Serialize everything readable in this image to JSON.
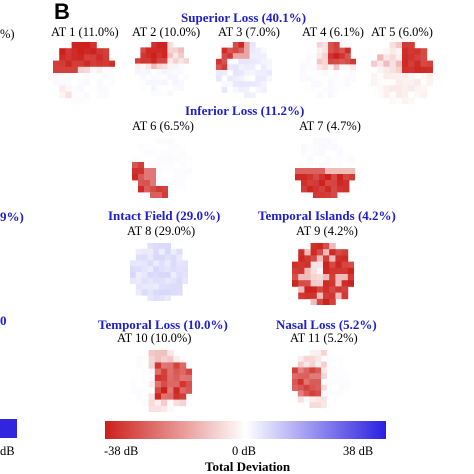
{
  "panel": {
    "letter": "B"
  },
  "groups": [
    {
      "title": "Superior Loss (40.1%)"
    },
    {
      "title": "Inferior Loss (11.2%)"
    },
    {
      "title": "Intact Field (29.0%)"
    },
    {
      "title": "Temporal Islands (4.2%)"
    },
    {
      "title": "Temporal Loss (10.0%)"
    },
    {
      "title": "Nasal Loss (5.2%)"
    }
  ],
  "archetypes": [
    {
      "label": "AT 1 (11.0%)",
      "pattern": "superior-loss"
    },
    {
      "label": "AT 2 (10.0%)",
      "pattern": "superior-temporal-quadrant"
    },
    {
      "label": "AT 3 (7.0%)",
      "pattern": "superior-temporal-arc"
    },
    {
      "label": "AT 4 (6.1%)",
      "pattern": "superior-nasal-partial"
    },
    {
      "label": "AT 5 (6.0%)",
      "pattern": "superior-nasal-band"
    },
    {
      "label": "AT 6 (6.5%)",
      "pattern": "inferior-temporal-arc"
    },
    {
      "label": "AT 7 (4.7%)",
      "pattern": "inferior-loss"
    },
    {
      "label": "AT 8 (29.0%)",
      "pattern": "intact"
    },
    {
      "label": "AT 9 (4.2%)",
      "pattern": "temporal-islands"
    },
    {
      "label": "AT 10 (10.0%)",
      "pattern": "temporal-loss"
    },
    {
      "label": "AT 11 (5.2%)",
      "pattern": "nasal-loss"
    }
  ],
  "colorbar": {
    "min_label": "-38 dB",
    "mid_label": "0 dB",
    "max_label": "38 dB",
    "title": "Total Deviation",
    "colors": {
      "low": "#cc1f1a",
      "mid": "#ffffff",
      "high": "#2a1fe0"
    }
  },
  "left_partial": {
    "texts": [
      "%)",
      "9%)",
      "0",
      "dB"
    ]
  }
}
